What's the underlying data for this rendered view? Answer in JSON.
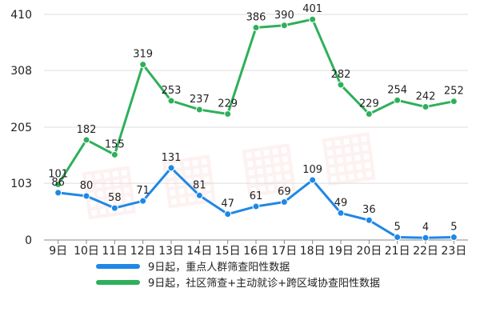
{
  "chart_data": {
    "type": "line",
    "categories": [
      "9日",
      "10日",
      "11日",
      "12日",
      "13日",
      "14日",
      "15日",
      "16日",
      "17日",
      "18日",
      "19日",
      "20日",
      "21日",
      "22日",
      "23日"
    ],
    "ylim": [
      0,
      410
    ],
    "yticks": [
      0,
      103,
      205,
      308,
      410
    ],
    "series": [
      {
        "name": "9日起，重点人群筛查阳性数据",
        "color": "#1e88e5",
        "values": [
          86,
          80,
          58,
          71,
          131,
          81,
          47,
          61,
          69,
          109,
          49,
          36,
          5,
          4,
          5
        ]
      },
      {
        "name": "9日起，社区筛查+主动就诊+跨区域协查阳性数据",
        "color": "#2eb05a",
        "values": [
          101,
          182,
          155,
          319,
          253,
          237,
          229,
          386,
          390,
          401,
          282,
          229,
          254,
          242,
          252
        ]
      }
    ],
    "legend_position": "bottom",
    "grid": true
  }
}
